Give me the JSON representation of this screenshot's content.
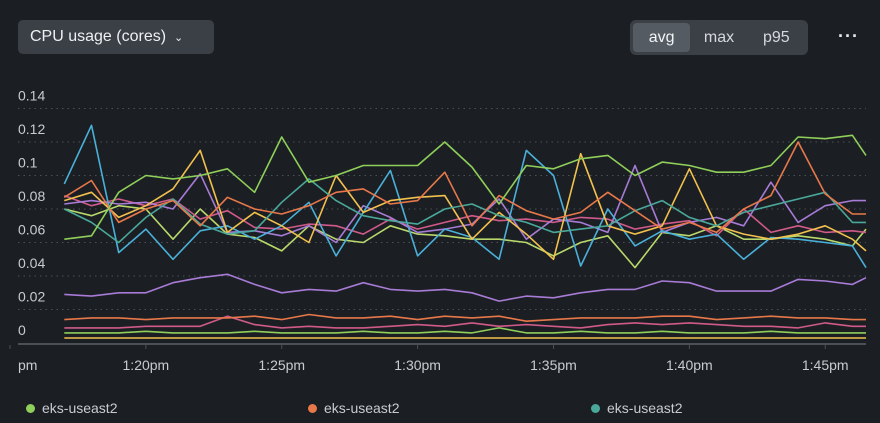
{
  "header": {
    "metric_label": "CPU usage (cores)",
    "aggregations": [
      "avg",
      "max",
      "p95"
    ],
    "active_aggregation": "avg",
    "more_label": "···"
  },
  "legend": [
    {
      "label": "eks-useast2",
      "color": "#8fcf5a"
    },
    {
      "label": "eks-useast2",
      "color": "#e8784a"
    },
    {
      "label": "eks-useast2",
      "color": "#4aa89a"
    }
  ],
  "chart_data": {
    "type": "line",
    "title": "CPU usage (cores)",
    "xlabel": "",
    "ylabel": "",
    "ylim": [
      0,
      0.14
    ],
    "xlim": [
      15,
      46.5
    ],
    "yticks": [
      0,
      0.02,
      0.04,
      0.06,
      0.08,
      0.1,
      0.12,
      0.14
    ],
    "ytick_labels": [
      "0",
      "0.02",
      "0.04",
      "0.06",
      "0.08",
      "0.1",
      "0.12",
      "0.14"
    ],
    "xticks": [
      15,
      20,
      25,
      30,
      35,
      40,
      45
    ],
    "xtick_labels": [
      "pm",
      "1:20pm",
      "1:25pm",
      "1:30pm",
      "1:35pm",
      "1:40pm",
      "1:45pm"
    ],
    "x": [
      17,
      18,
      19,
      20,
      21,
      22,
      23,
      24,
      25,
      26,
      27,
      28,
      29,
      30,
      31,
      32,
      33,
      34,
      35,
      36,
      37,
      38,
      39,
      40,
      41,
      42,
      43,
      44,
      45,
      46,
      46.5
    ],
    "series": [
      {
        "name": "eks-useast2",
        "color": "#8fcf5a",
        "values": [
          0.062,
          0.064,
          0.09,
          0.1,
          0.098,
          0.1,
          0.104,
          0.09,
          0.123,
          0.096,
          0.1,
          0.106,
          0.106,
          0.106,
          0.12,
          0.105,
          0.083,
          0.106,
          0.104,
          0.11,
          0.112,
          0.1,
          0.108,
          0.106,
          0.102,
          0.102,
          0.106,
          0.123,
          0.122,
          0.124,
          0.112
        ]
      },
      {
        "name": "eks-useast2",
        "color": "#e8784a",
        "values": [
          0.087,
          0.097,
          0.072,
          0.08,
          0.085,
          0.07,
          0.087,
          0.08,
          0.077,
          0.082,
          0.09,
          0.092,
          0.083,
          0.085,
          0.102,
          0.07,
          0.088,
          0.079,
          0.074,
          0.078,
          0.09,
          0.079,
          0.068,
          0.072,
          0.066,
          0.08,
          0.088,
          0.12,
          0.089,
          0.077,
          0.077
        ]
      },
      {
        "name": "eks-useast2",
        "color": "#4aa89a",
        "values": [
          0.08,
          0.072,
          0.06,
          0.075,
          0.086,
          0.071,
          0.065,
          0.067,
          0.084,
          0.098,
          0.085,
          0.076,
          0.073,
          0.071,
          0.08,
          0.083,
          0.076,
          0.072,
          0.066,
          0.068,
          0.07,
          0.079,
          0.085,
          0.075,
          0.07,
          0.078,
          0.082,
          0.086,
          0.09,
          0.072,
          0.072
        ]
      },
      {
        "name": "eks-useast2",
        "color": "#f2c14e",
        "values": [
          0.085,
          0.09,
          0.075,
          0.082,
          0.092,
          0.115,
          0.066,
          0.078,
          0.07,
          0.06,
          0.1,
          0.078,
          0.085,
          0.087,
          0.088,
          0.062,
          0.078,
          0.065,
          0.05,
          0.113,
          0.07,
          0.065,
          0.07,
          0.104,
          0.07,
          0.065,
          0.062,
          0.065,
          0.07,
          0.062,
          0.055
        ]
      },
      {
        "name": "eks-useast2",
        "color": "#4ab0d9",
        "values": [
          0.095,
          0.13,
          0.054,
          0.068,
          0.05,
          0.067,
          0.07,
          0.062,
          0.07,
          0.084,
          0.052,
          0.078,
          0.103,
          0.052,
          0.068,
          0.063,
          0.05,
          0.115,
          0.1,
          0.046,
          0.08,
          0.058,
          0.067,
          0.062,
          0.065,
          0.05,
          0.063,
          0.062,
          0.06,
          0.058,
          0.045
        ]
      },
      {
        "name": "eks-useast2",
        "color": "#a77bd6",
        "values": [
          0.083,
          0.085,
          0.083,
          0.084,
          0.08,
          0.101,
          0.066,
          0.067,
          0.064,
          0.07,
          0.06,
          0.082,
          0.075,
          0.066,
          0.068,
          0.071,
          0.086,
          0.062,
          0.074,
          0.072,
          0.066,
          0.106,
          0.066,
          0.072,
          0.075,
          0.07,
          0.096,
          0.072,
          0.082,
          0.085,
          0.085
        ]
      },
      {
        "name": "eks-useast2",
        "color": "#d05a8a",
        "values": [
          0.088,
          0.082,
          0.086,
          0.082,
          0.086,
          0.074,
          0.079,
          0.069,
          0.068,
          0.071,
          0.07,
          0.065,
          0.074,
          0.068,
          0.072,
          0.076,
          0.073,
          0.074,
          0.072,
          0.075,
          0.074,
          0.068,
          0.071,
          0.073,
          0.064,
          0.08,
          0.066,
          0.07,
          0.066,
          0.067,
          0.066
        ]
      },
      {
        "name": "eks-useast2",
        "color": "#b9d86b",
        "values": [
          0.08,
          0.076,
          0.082,
          0.08,
          0.062,
          0.08,
          0.065,
          0.063,
          0.055,
          0.07,
          0.062,
          0.06,
          0.07,
          0.065,
          0.064,
          0.062,
          0.062,
          0.06,
          0.052,
          0.06,
          0.064,
          0.045,
          0.066,
          0.064,
          0.07,
          0.062,
          0.062,
          0.064,
          0.062,
          0.058,
          0.068
        ]
      },
      {
        "name": "eks-useast2",
        "color": "#a77bd6",
        "values": [
          0.029,
          0.028,
          0.03,
          0.03,
          0.036,
          0.039,
          0.041,
          0.035,
          0.03,
          0.032,
          0.031,
          0.036,
          0.032,
          0.031,
          0.032,
          0.03,
          0.025,
          0.028,
          0.027,
          0.03,
          0.032,
          0.032,
          0.037,
          0.036,
          0.031,
          0.031,
          0.031,
          0.038,
          0.037,
          0.035,
          0.039
        ]
      },
      {
        "name": "eks-useast2",
        "color": "#e8784a",
        "values": [
          0.014,
          0.015,
          0.015,
          0.014,
          0.015,
          0.015,
          0.015,
          0.016,
          0.014,
          0.017,
          0.015,
          0.015,
          0.016,
          0.014,
          0.016,
          0.015,
          0.016,
          0.013,
          0.014,
          0.015,
          0.015,
          0.015,
          0.016,
          0.016,
          0.014,
          0.015,
          0.016,
          0.015,
          0.015,
          0.014,
          0.014
        ]
      },
      {
        "name": "eks-useast2",
        "color": "#d05a8a",
        "values": [
          0.009,
          0.009,
          0.009,
          0.01,
          0.01,
          0.01,
          0.016,
          0.011,
          0.009,
          0.01,
          0.009,
          0.009,
          0.01,
          0.011,
          0.01,
          0.012,
          0.01,
          0.011,
          0.01,
          0.009,
          0.011,
          0.012,
          0.011,
          0.012,
          0.011,
          0.01,
          0.01,
          0.009,
          0.012,
          0.01,
          0.01
        ]
      },
      {
        "name": "eks-useast2",
        "color": "#8fcf5a",
        "values": [
          0.006,
          0.006,
          0.006,
          0.007,
          0.006,
          0.006,
          0.006,
          0.007,
          0.006,
          0.006,
          0.006,
          0.007,
          0.006,
          0.006,
          0.007,
          0.006,
          0.009,
          0.006,
          0.006,
          0.007,
          0.006,
          0.006,
          0.007,
          0.006,
          0.006,
          0.006,
          0.007,
          0.006,
          0.006,
          0.006,
          0.006
        ]
      },
      {
        "name": "eks-useast2",
        "color": "#f2c14e",
        "values": [
          0.003,
          0.003,
          0.003,
          0.003,
          0.003,
          0.003,
          0.003,
          0.003,
          0.003,
          0.003,
          0.003,
          0.003,
          0.003,
          0.003,
          0.003,
          0.003,
          0.003,
          0.003,
          0.003,
          0.003,
          0.003,
          0.003,
          0.003,
          0.003,
          0.003,
          0.003,
          0.003,
          0.003,
          0.003,
          0.003,
          0.003
        ]
      }
    ]
  }
}
